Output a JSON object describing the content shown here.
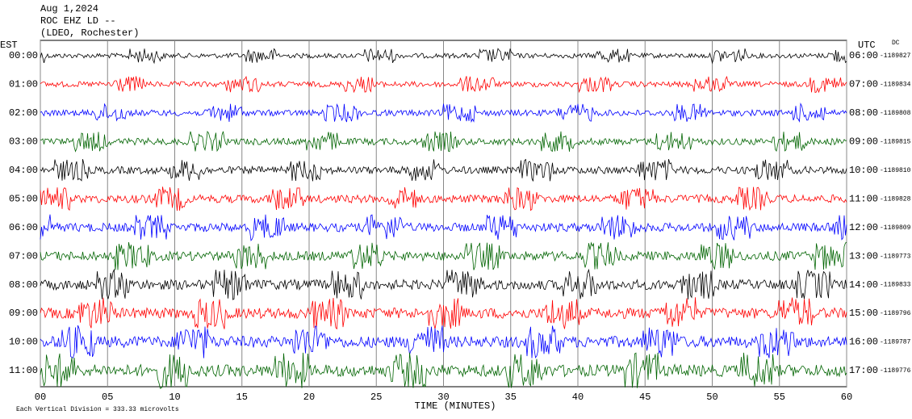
{
  "chart_data": {
    "type": "helicorder",
    "title_lines": [
      "Aug 1,2024",
      "ROC EHZ LD --",
      "(LDEO, Rochester)"
    ],
    "left_label": "EST",
    "right_label": "UTC",
    "dc_label": "DC",
    "rows": [
      {
        "est": "00:00",
        "utc": "06:00",
        "dc": -1189827,
        "color": "#000000"
      },
      {
        "est": "01:00",
        "utc": "07:00",
        "dc": -1189834,
        "color": "#ff0000"
      },
      {
        "est": "02:00",
        "utc": "08:00",
        "dc": -1189808,
        "color": "#0000ff"
      },
      {
        "est": "03:00",
        "utc": "09:00",
        "dc": -1189815,
        "color": "#006400"
      },
      {
        "est": "04:00",
        "utc": "10:00",
        "dc": -1189810,
        "color": "#000000"
      },
      {
        "est": "05:00",
        "utc": "11:00",
        "dc": -1189828,
        "color": "#ff0000"
      },
      {
        "est": "06:00",
        "utc": "12:00",
        "dc": -1189809,
        "color": "#0000ff"
      },
      {
        "est": "07:00",
        "utc": "13:00",
        "dc": -1189773,
        "color": "#006400"
      },
      {
        "est": "08:00",
        "utc": "14:00",
        "dc": -1189833,
        "color": "#000000"
      },
      {
        "est": "09:00",
        "utc": "15:00",
        "dc": -1189796,
        "color": "#ff0000"
      },
      {
        "est": "10:00",
        "utc": "16:00",
        "dc": -1189787,
        "color": "#0000ff"
      },
      {
        "est": "11:00",
        "utc": "17:00",
        "dc": -1189776,
        "color": "#006400"
      }
    ],
    "xlim": [
      0,
      60
    ],
    "xticks": [
      {
        "value": 0,
        "label": "00"
      },
      {
        "value": 5,
        "label": "05"
      },
      10,
      15,
      20,
      25,
      30,
      35,
      40,
      45,
      50,
      55,
      60
    ],
    "xlabel": "TIME (MINUTES)",
    "footer": "Each Vertical Division =  333.33 microvolts",
    "grid": true
  }
}
